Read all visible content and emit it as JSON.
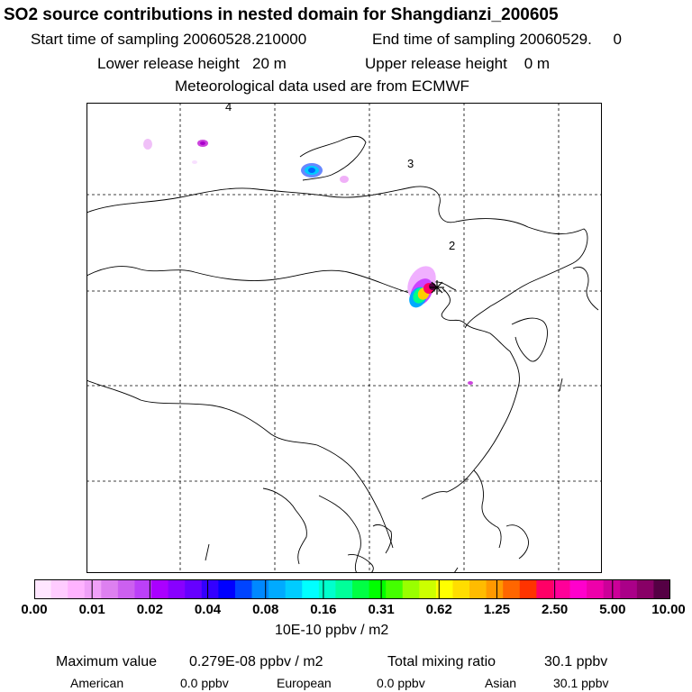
{
  "title": "SO2 source contributions in nested domain for Shangdianzi_200605",
  "sampling": {
    "start_label": "Start time of sampling 20060528.210000",
    "end_label": "End time of sampling 20060529.     0"
  },
  "release": {
    "lower_label": "Lower release height   20 m",
    "upper_label": "Upper release height    0 m"
  },
  "meteo": "Meteorological data used are from ECMWF",
  "map": {
    "contour_labels": [
      "4",
      "3",
      "2"
    ],
    "station_marker": "station-star-icon"
  },
  "colorbar": {
    "colors": [
      "#ffe6ff",
      "#ffccff",
      "#ffb3ff",
      "#f0a0f8",
      "#dd80f0",
      "#cc60f0",
      "#bb40f8",
      "#aa00ff",
      "#8800ff",
      "#6600ff",
      "#3300ff",
      "#0000ff",
      "#0044ff",
      "#0088ff",
      "#00aaff",
      "#00ccff",
      "#00ffff",
      "#00ffcc",
      "#00ff99",
      "#00ff44",
      "#00ff00",
      "#44ff00",
      "#99ff00",
      "#ccff00",
      "#ffff00",
      "#ffdd00",
      "#ffbb00",
      "#ff9900",
      "#ff6600",
      "#ff3300",
      "#ff0066",
      "#ff0099",
      "#ff00cc",
      "#ee00aa",
      "#cc0099",
      "#aa0088",
      "#880066",
      "#550044"
    ],
    "tick_labels": [
      "0.00",
      "0.01",
      "0.02",
      "0.04",
      "0.08",
      "0.16",
      "0.31",
      "0.62",
      "1.25",
      "2.50",
      "5.00",
      "10.00"
    ],
    "unit": "10E-10 ppbv / m2"
  },
  "summary": {
    "max_label": "Maximum value",
    "max_value": "0.279E-08 ppbv / m2",
    "total_label": "Total mixing ratio",
    "total_value": "30.1 ppbv",
    "regions": [
      {
        "name": "American",
        "value": "0.0 ppbv"
      },
      {
        "name": "European",
        "value": "0.0 ppbv"
      },
      {
        "name": "Asian",
        "value": "30.1 ppbv"
      }
    ]
  }
}
